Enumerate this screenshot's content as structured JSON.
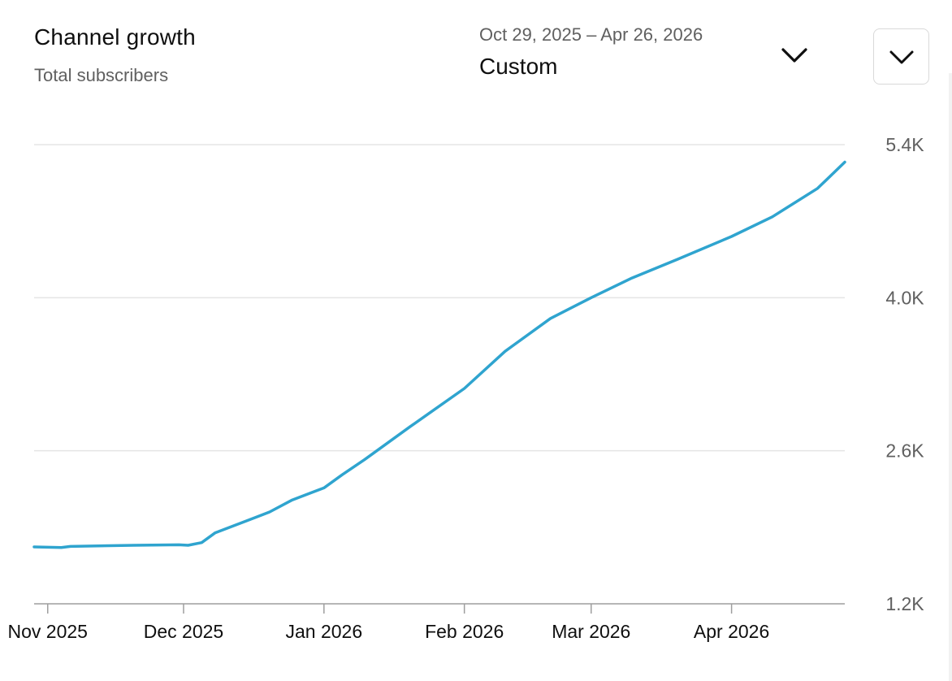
{
  "header": {
    "title": "Channel growth",
    "subtitle": "Total subscribers"
  },
  "range_picker": {
    "dates": "Oct 29, 2025 – Apr 26, 2026",
    "label": "Custom",
    "icon": "chevron-down-icon"
  },
  "menu_button": {
    "icon": "chevron-down-icon"
  },
  "colors": {
    "line": "#2fa4cf",
    "grid": "#e5e5e5",
    "axis": "#9e9e9e"
  },
  "chart_data": {
    "type": "line",
    "title": "Channel growth",
    "subtitle": "Total subscribers",
    "xlabel": "",
    "ylabel": "",
    "ylim": [
      1200,
      5400
    ],
    "xlim": [
      "2025-10-29",
      "2026-04-26"
    ],
    "y_ticks": [
      5400,
      4000,
      2600,
      1200
    ],
    "y_tick_labels": [
      "5.4K",
      "4.0K",
      "2.6K",
      "1.2K"
    ],
    "x_ticks": [
      "2025-11-01",
      "2025-12-01",
      "2026-01-01",
      "2026-02-01",
      "2026-03-01",
      "2026-04-01"
    ],
    "x_tick_labels": [
      "Nov 2025",
      "Dec 2025",
      "Jan 2026",
      "Feb 2026",
      "Mar 2026",
      "Apr 2026"
    ],
    "grid": true,
    "legend": "none",
    "series": [
      {
        "x": [
          "2025-10-29",
          "2025-11-04",
          "2025-11-06",
          "2025-11-20",
          "2025-11-30",
          "2025-12-02",
          "2025-12-05",
          "2025-12-08",
          "2025-12-15",
          "2025-12-20",
          "2025-12-25",
          "2026-01-01",
          "2026-01-05",
          "2026-01-10",
          "2026-01-20",
          "2026-02-01",
          "2026-02-10",
          "2026-02-20",
          "2026-03-01",
          "2026-03-10",
          "2026-03-20",
          "2026-04-01",
          "2026-04-10",
          "2026-04-20",
          "2026-04-26"
        ],
        "y": [
          1720,
          1715,
          1725,
          1735,
          1740,
          1735,
          1760,
          1850,
          1960,
          2040,
          2150,
          2260,
          2380,
          2520,
          2820,
          3170,
          3510,
          3810,
          4000,
          4180,
          4350,
          4560,
          4740,
          5000,
          5240
        ]
      }
    ]
  }
}
